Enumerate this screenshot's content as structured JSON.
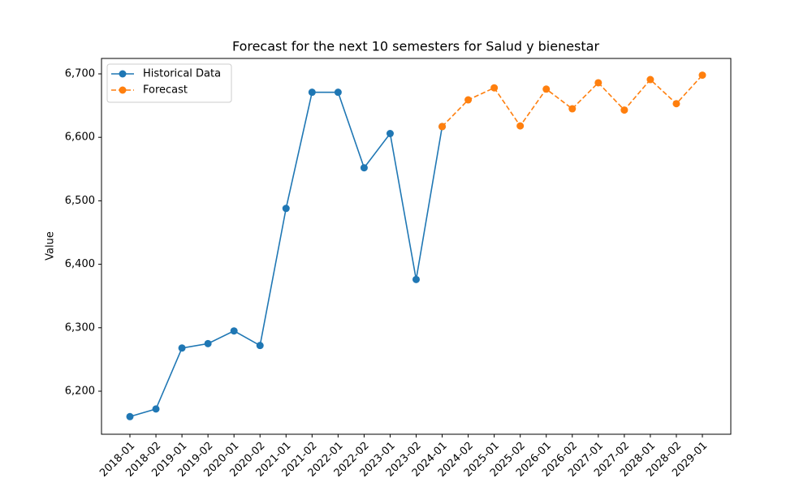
{
  "chart_data": {
    "type": "line",
    "title": "Forecast for the next 10 semesters for Salud y bienestar",
    "y_label": "Value",
    "categories": [
      "2018-01",
      "2018-02",
      "2019-01",
      "2019-02",
      "2020-01",
      "2020-02",
      "2021-01",
      "2021-02",
      "2022-01",
      "2022-02",
      "2023-01",
      "2023-02",
      "2024-01",
      "2024-02",
      "2025-01",
      "2025-02",
      "2026-01",
      "2026-02",
      "2027-01",
      "2027-02",
      "2028-01",
      "2028-02",
      "2029-01"
    ],
    "series": [
      {
        "name": "Historical Data",
        "color": "#1f77b4",
        "linestyle": "solid",
        "values": [
          6160,
          6172,
          6268,
          6275,
          6295,
          6272,
          6488,
          6671,
          6671,
          6552,
          6606,
          6376,
          6617,
          null,
          null,
          null,
          null,
          null,
          null,
          null,
          null,
          null,
          null
        ]
      },
      {
        "name": "Forecast",
        "color": "#ff7f0e",
        "linestyle": "dashed",
        "values": [
          null,
          null,
          null,
          null,
          null,
          null,
          null,
          null,
          null,
          null,
          null,
          null,
          6617,
          6659,
          6678,
          6618,
          6676,
          6645,
          6686,
          6643,
          6691,
          6653,
          6698
        ]
      }
    ],
    "ylim": [
      6132.2,
      6724.3
    ],
    "yticks": [
      {
        "value": 6200,
        "label": "6,200"
      },
      {
        "value": 6300,
        "label": "6,300"
      },
      {
        "value": 6400,
        "label": "6,400"
      },
      {
        "value": 6500,
        "label": "6,500"
      },
      {
        "value": 6600,
        "label": "6,600"
      },
      {
        "value": 6700,
        "label": "6,700"
      }
    ],
    "legend": "upper left"
  }
}
